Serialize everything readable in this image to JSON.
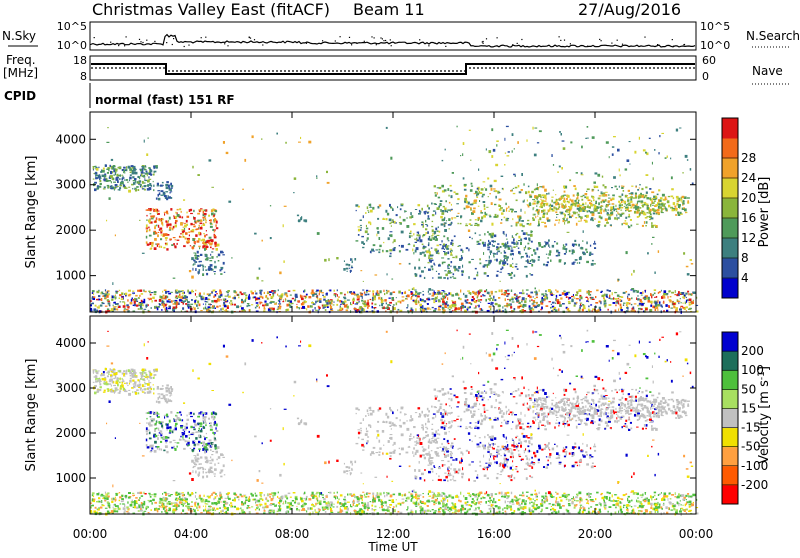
{
  "header": {
    "title": "Christmas Valley East (fitACF)",
    "beam": "Beam 11",
    "date": "27/Aug/2016"
  },
  "top_panels": {
    "nsky_label": "N.Sky",
    "nsky_ticks": [
      "10^5",
      "10^0"
    ],
    "nsearch_label": "N.Search",
    "nsearch_ticks": [
      "10^5",
      "10^0"
    ],
    "freq_label_line1": "Freq.",
    "freq_label_line2": "[MHz]",
    "freq_ticks": [
      "18",
      "8"
    ],
    "nave_label": "Nave",
    "nave_ticks": [
      "60",
      "0"
    ],
    "cpid_label": "CPID",
    "cpid_text": "normal (fast) 151 RF"
  },
  "colors": {
    "power": [
      "#0000cc",
      "#2c4fa0",
      "#3d7f7f",
      "#4f9a5a",
      "#8ab53b",
      "#d8d431",
      "#f0a22a",
      "#f26a1a",
      "#dc1515"
    ],
    "velocity": [
      "#ff0000",
      "#ff5a00",
      "#ffa040",
      "#f0e000",
      "#c0c0c0",
      "#a8e060",
      "#4ec03c",
      "#1d6e5a",
      "#0000d0"
    ]
  },
  "chart_data": [
    {
      "type": "heatmap",
      "name": "power",
      "ylabel": "Slant Range [km]",
      "yticks": [
        1000,
        2000,
        3000,
        4000
      ],
      "ylim": [
        200,
        4600
      ],
      "xlim": [
        0,
        24
      ],
      "xticks": [
        "00:00",
        "04:00",
        "08:00",
        "12:00",
        "16:00",
        "20:00",
        "00:00"
      ],
      "colorbar_label": "Power [dB]",
      "colorbar_ticks": [
        "4",
        "8",
        "12",
        "16",
        "20",
        "24",
        "28"
      ]
    },
    {
      "type": "heatmap",
      "name": "velocity",
      "ylabel": "Slant Range [km]",
      "yticks": [
        1000,
        2000,
        3000,
        4000
      ],
      "ylim": [
        200,
        4600
      ],
      "xlim": [
        0,
        24
      ],
      "xticks": [
        "00:00",
        "04:00",
        "08:00",
        "12:00",
        "16:00",
        "20:00",
        "00:00"
      ],
      "xlabel": "Time UT",
      "colorbar_label_main": "Velocity [m s",
      "colorbar_label_sup": "-1",
      "colorbar_label_end": "]",
      "colorbar_ticks": [
        "200",
        "100",
        "50",
        "15",
        "-15",
        "-50",
        "-100",
        "-200"
      ]
    }
  ]
}
